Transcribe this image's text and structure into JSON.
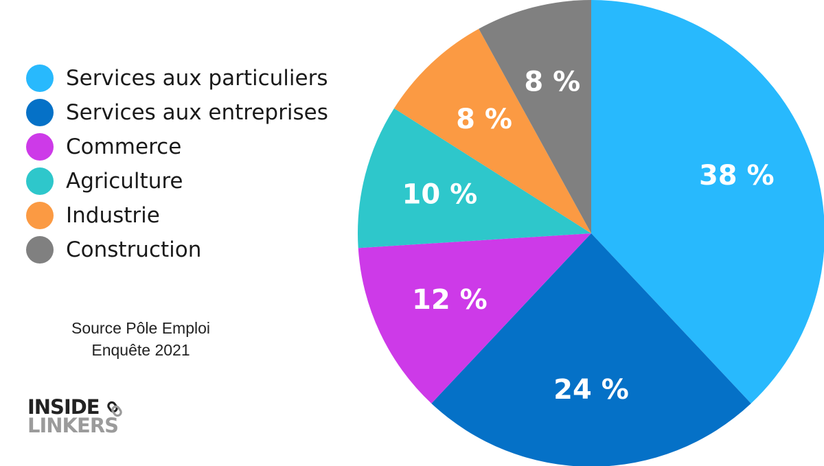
{
  "chart_data": {
    "type": "pie",
    "slices": [
      {
        "label": "Services aux particuliers",
        "value": 38,
        "display": "38 %",
        "color": "#28b9fd"
      },
      {
        "label": "Services aux entreprises",
        "value": 24,
        "display": "24 %",
        "color": "#0571c7"
      },
      {
        "label": "Commerce",
        "value": 12,
        "display": "12 %",
        "color": "#cd3ae8"
      },
      {
        "label": "Agriculture",
        "value": 10,
        "display": "10 %",
        "color": "#2ec7cb"
      },
      {
        "label": "Industrie",
        "value": 8,
        "display": "8 %",
        "color": "#fb9a43"
      },
      {
        "label": "Construction",
        "value": 8,
        "display": "8 %",
        "color": "#808080"
      }
    ],
    "legend_position": "left",
    "start": "top, clockwise"
  },
  "source": {
    "line1": "Source Pôle Emploi",
    "line2": "Enquête 2021"
  },
  "logo": {
    "line1": "INSIDE",
    "line2": "LINKERS",
    "icon": "chain-link-icon"
  }
}
